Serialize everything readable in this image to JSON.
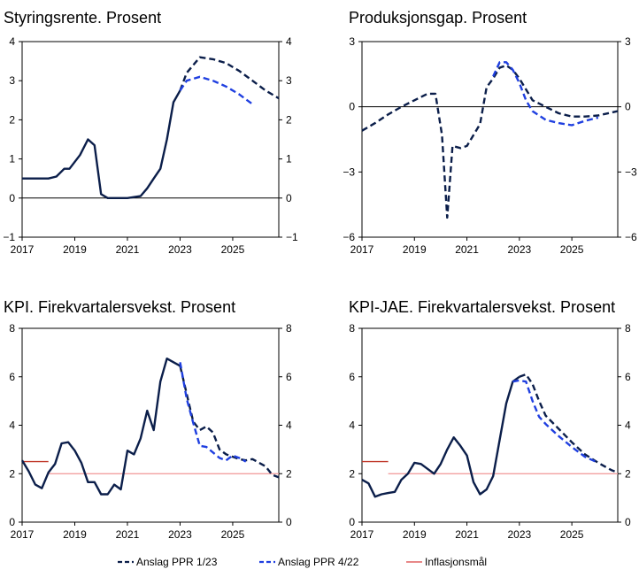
{
  "chart_data": [
    {
      "type": "line",
      "title": "Styringsrente. Prosent",
      "ylim": [
        -1,
        4
      ],
      "yticks": [
        "4",
        "3",
        "2",
        "1",
        "0",
        "−1"
      ],
      "xlim": [
        2017,
        2026.75
      ],
      "xticks": [
        "2017",
        "2019",
        "2021",
        "2023",
        "2025"
      ],
      "zero_line": true,
      "series": [
        {
          "name": "Anslag PPR 1/23",
          "color": "#0b1e4a",
          "values": [
            [
              2017,
              0.5
            ],
            [
              2017.5,
              0.5
            ],
            [
              2018,
              0.5
            ],
            [
              2018.3,
              0.55
            ],
            [
              2018.6,
              0.75
            ],
            [
              2018.8,
              0.75
            ],
            [
              2019.2,
              1.1
            ],
            [
              2019.5,
              1.5
            ],
            [
              2019.75,
              1.35
            ],
            [
              2020.0,
              0.1
            ],
            [
              2020.25,
              0.0
            ],
            [
              2021.0,
              0.0
            ],
            [
              2021.5,
              0.05
            ],
            [
              2021.75,
              0.25
            ],
            [
              2022.0,
              0.5
            ],
            [
              2022.25,
              0.75
            ],
            [
              2022.5,
              1.5
            ],
            [
              2022.75,
              2.45
            ],
            [
              2023.0,
              2.75
            ]
          ]
        },
        {
          "name": "Anslag PPR 1/23",
          "color": "#0b1e4a",
          "dashed": true,
          "values": [
            [
              2023.0,
              2.75
            ],
            [
              2023.25,
              3.2
            ],
            [
              2023.75,
              3.6
            ],
            [
              2024.25,
              3.55
            ],
            [
              2024.75,
              3.45
            ],
            [
              2025.25,
              3.25
            ],
            [
              2025.75,
              3.0
            ],
            [
              2026.25,
              2.75
            ],
            [
              2026.75,
              2.55
            ]
          ]
        },
        {
          "name": "Anslag PPR 4/22",
          "color": "#1f3fe0",
          "dashed": true,
          "values": [
            [
              2023.0,
              2.75
            ],
            [
              2023.25,
              3.0
            ],
            [
              2023.75,
              3.1
            ],
            [
              2024.25,
              3.0
            ],
            [
              2024.75,
              2.85
            ],
            [
              2025.25,
              2.65
            ],
            [
              2025.75,
              2.4
            ]
          ]
        }
      ]
    },
    {
      "type": "line",
      "title": "Produksjonsgap. Prosent",
      "ylim": [
        -6,
        3
      ],
      "yticks": [
        "3",
        "0",
        "−3",
        "−6"
      ],
      "xlim": [
        2017,
        2026.75
      ],
      "xticks": [
        "2017",
        "2019",
        "2021",
        "2023",
        "2025"
      ],
      "zero_line": true,
      "series": [
        {
          "name": "Anslag PPR 1/23",
          "color": "#0b1e4a",
          "dashed": true,
          "values": [
            [
              2017,
              -1.1
            ],
            [
              2017.5,
              -0.75
            ],
            [
              2018,
              -0.35
            ],
            [
              2018.5,
              0.0
            ],
            [
              2019,
              0.3
            ],
            [
              2019.5,
              0.6
            ],
            [
              2019.8,
              0.6
            ],
            [
              2020.05,
              -1.3
            ],
            [
              2020.25,
              -5.1
            ],
            [
              2020.45,
              -1.8
            ],
            [
              2020.75,
              -1.9
            ],
            [
              2021.0,
              -1.8
            ],
            [
              2021.5,
              -0.8
            ],
            [
              2021.75,
              0.9
            ],
            [
              2022.0,
              1.3
            ],
            [
              2022.25,
              1.8
            ],
            [
              2022.5,
              1.9
            ],
            [
              2022.75,
              1.7
            ],
            [
              2023.0,
              1.3
            ],
            [
              2023.25,
              0.8
            ],
            [
              2023.5,
              0.3
            ],
            [
              2024.0,
              0.0
            ],
            [
              2024.5,
              -0.3
            ],
            [
              2025.0,
              -0.45
            ],
            [
              2025.5,
              -0.45
            ],
            [
              2026.0,
              -0.4
            ],
            [
              2026.75,
              -0.2
            ]
          ]
        },
        {
          "name": "Anslag PPR 4/22",
          "color": "#1f3fe0",
          "dashed": true,
          "values": [
            [
              2022.0,
              1.4
            ],
            [
              2022.25,
              2.05
            ],
            [
              2022.5,
              2.05
            ],
            [
              2022.75,
              1.7
            ],
            [
              2023.0,
              1.1
            ],
            [
              2023.25,
              0.3
            ],
            [
              2023.5,
              -0.2
            ],
            [
              2024.0,
              -0.6
            ],
            [
              2024.5,
              -0.75
            ],
            [
              2025.0,
              -0.85
            ],
            [
              2025.5,
              -0.65
            ],
            [
              2026.0,
              -0.5
            ]
          ]
        }
      ]
    },
    {
      "type": "line",
      "title": "KPI. Firekvartalersvekst. Prosent",
      "ylim": [
        0,
        8
      ],
      "yticks": [
        "8",
        "6",
        "4",
        "2",
        "0"
      ],
      "xlim": [
        2017,
        2026.75
      ],
      "xticks": [
        "2017",
        "2019",
        "2021",
        "2023",
        "2025"
      ],
      "zero_line": false,
      "series": [
        {
          "name": "Inflasjonsmål",
          "color": "#c0392b",
          "values": [
            [
              2017,
              2.5
            ],
            [
              2018,
              2.5
            ]
          ]
        },
        {
          "name": "Inflasjonsmål",
          "color": "#f2a0a0",
          "values": [
            [
              2018,
              2.0
            ],
            [
              2026.75,
              2.0
            ]
          ]
        },
        {
          "name": "Anslag PPR 1/23",
          "color": "#0b1e4a",
          "values": [
            [
              2017,
              2.55
            ],
            [
              2017.25,
              2.1
            ],
            [
              2017.5,
              1.55
            ],
            [
              2017.75,
              1.4
            ],
            [
              2018.0,
              2.05
            ],
            [
              2018.25,
              2.4
            ],
            [
              2018.5,
              3.25
            ],
            [
              2018.75,
              3.3
            ],
            [
              2019.0,
              2.95
            ],
            [
              2019.25,
              2.45
            ],
            [
              2019.5,
              1.65
            ],
            [
              2019.75,
              1.65
            ],
            [
              2020.0,
              1.15
            ],
            [
              2020.25,
              1.15
            ],
            [
              2020.5,
              1.55
            ],
            [
              2020.75,
              1.35
            ],
            [
              2021.0,
              2.95
            ],
            [
              2021.25,
              2.8
            ],
            [
              2021.5,
              3.45
            ],
            [
              2021.75,
              4.6
            ],
            [
              2022.0,
              3.8
            ],
            [
              2022.25,
              5.8
            ],
            [
              2022.5,
              6.75
            ],
            [
              2022.75,
              6.6
            ],
            [
              2023.0,
              6.45
            ]
          ]
        },
        {
          "name": "Anslag PPR 1/23",
          "color": "#0b1e4a",
          "dashed": true,
          "values": [
            [
              2023.0,
              6.45
            ],
            [
              2023.25,
              5.3
            ],
            [
              2023.5,
              4.15
            ],
            [
              2023.75,
              3.8
            ],
            [
              2024.0,
              3.95
            ],
            [
              2024.25,
              3.7
            ],
            [
              2024.5,
              3.0
            ],
            [
              2024.75,
              2.8
            ],
            [
              2025.25,
              2.6
            ],
            [
              2025.5,
              2.55
            ],
            [
              2025.75,
              2.6
            ],
            [
              2026.25,
              2.3
            ],
            [
              2026.5,
              1.95
            ],
            [
              2026.75,
              1.85
            ]
          ]
        },
        {
          "name": "Anslag PPR 4/22",
          "color": "#1f3fe0",
          "dashed": true,
          "values": [
            [
              2023.0,
              6.6
            ],
            [
              2023.25,
              5.1
            ],
            [
              2023.5,
              4.1
            ],
            [
              2023.75,
              3.15
            ],
            [
              2024.0,
              3.1
            ],
            [
              2024.5,
              2.65
            ],
            [
              2024.75,
              2.55
            ],
            [
              2025.0,
              2.75
            ],
            [
              2025.25,
              2.65
            ],
            [
              2025.5,
              2.5
            ]
          ]
        }
      ]
    },
    {
      "type": "line",
      "title": "KPI-JAE. Firekvartalersvekst. Prosent",
      "ylim": [
        0,
        8
      ],
      "yticks": [
        "8",
        "6",
        "4",
        "2",
        "0"
      ],
      "xlim": [
        2017,
        2026.75
      ],
      "xticks": [
        "2017",
        "2019",
        "2021",
        "2023",
        "2025"
      ],
      "zero_line": false,
      "series": [
        {
          "name": "Inflasjonsmål",
          "color": "#c0392b",
          "values": [
            [
              2017,
              2.5
            ],
            [
              2018,
              2.5
            ]
          ]
        },
        {
          "name": "Inflasjonsmål",
          "color": "#f2a0a0",
          "values": [
            [
              2018,
              2.0
            ],
            [
              2026.75,
              2.0
            ]
          ]
        },
        {
          "name": "Anslag PPR 1/23",
          "color": "#0b1e4a",
          "values": [
            [
              2017,
              1.75
            ],
            [
              2017.25,
              1.6
            ],
            [
              2017.5,
              1.05
            ],
            [
              2017.75,
              1.15
            ],
            [
              2018.0,
              1.2
            ],
            [
              2018.25,
              1.25
            ],
            [
              2018.5,
              1.75
            ],
            [
              2018.75,
              2.0
            ],
            [
              2019.0,
              2.45
            ],
            [
              2019.25,
              2.4
            ],
            [
              2019.5,
              2.2
            ],
            [
              2019.75,
              2.0
            ],
            [
              2020.0,
              2.4
            ],
            [
              2020.25,
              3.0
            ],
            [
              2020.5,
              3.5
            ],
            [
              2020.75,
              3.15
            ],
            [
              2021.0,
              2.75
            ],
            [
              2021.25,
              1.65
            ],
            [
              2021.5,
              1.15
            ],
            [
              2021.75,
              1.35
            ],
            [
              2022.0,
              1.9
            ],
            [
              2022.25,
              3.4
            ],
            [
              2022.5,
              4.9
            ],
            [
              2022.75,
              5.8
            ],
            [
              2023.0,
              6.0
            ]
          ]
        },
        {
          "name": "Anslag PPR 1/23",
          "color": "#0b1e4a",
          "dashed": true,
          "values": [
            [
              2023.0,
              6.0
            ],
            [
              2023.25,
              6.1
            ],
            [
              2023.5,
              5.7
            ],
            [
              2023.75,
              5.0
            ],
            [
              2024.0,
              4.4
            ],
            [
              2024.5,
              3.85
            ],
            [
              2025.0,
              3.3
            ],
            [
              2025.5,
              2.8
            ],
            [
              2026.0,
              2.45
            ],
            [
              2026.5,
              2.15
            ],
            [
              2026.75,
              2.05
            ]
          ]
        },
        {
          "name": "Anslag PPR 4/22",
          "color": "#1f3fe0",
          "dashed": true,
          "values": [
            [
              2022.75,
              5.8
            ],
            [
              2023.0,
              5.85
            ],
            [
              2023.25,
              5.8
            ],
            [
              2023.5,
              5.0
            ],
            [
              2023.75,
              4.35
            ],
            [
              2024.0,
              4.05
            ],
            [
              2024.5,
              3.55
            ],
            [
              2025.0,
              3.1
            ],
            [
              2025.5,
              2.7
            ],
            [
              2026.0,
              2.45
            ]
          ]
        }
      ]
    }
  ],
  "legend": {
    "items": [
      {
        "label": "Anslag PPR 1/23",
        "color": "#0b1e4a",
        "style": "dashed"
      },
      {
        "label": "Anslag PPR 4/22",
        "color": "#1f3fe0",
        "style": "dashed"
      },
      {
        "label": "Inflasjonsmål",
        "color": "#e06060",
        "style": "solid"
      }
    ]
  }
}
